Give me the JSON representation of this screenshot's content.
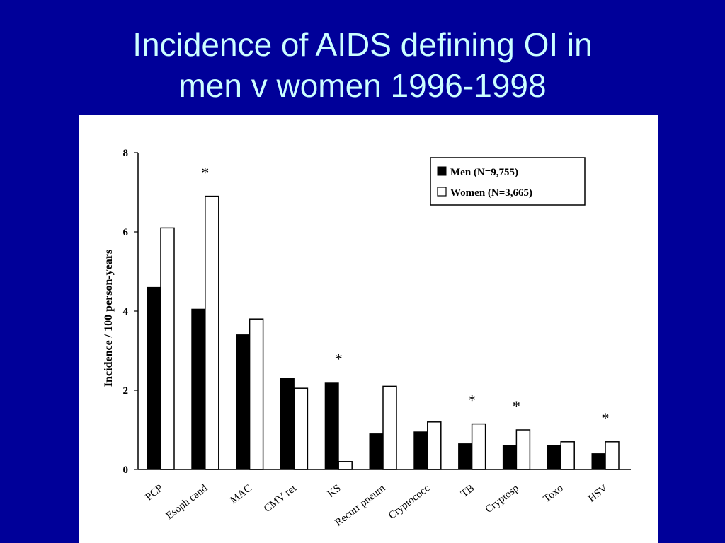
{
  "slide": {
    "title_line1": "Incidence of AIDS defining OI in",
    "title_line2": "men v women 1996-1998"
  },
  "colors": {
    "background": "#000099",
    "title": "#ccffff",
    "men": "#000000",
    "women": "#ffffff"
  },
  "chart_data": {
    "type": "bar",
    "title": "",
    "xlabel": "",
    "ylabel": "Incidence / 100 person-years",
    "ylim": [
      0,
      8
    ],
    "yticks": [
      "0",
      "2",
      "4",
      "6",
      "8"
    ],
    "categories": [
      "PCP",
      "Esoph cand",
      "MAC",
      "CMV ret",
      "KS",
      "Recurr pneum",
      "Cryptococc",
      "TB",
      "Cryptosp",
      "Toxo",
      "HSV"
    ],
    "series": [
      {
        "name": "Men (N=9,755)",
        "values": [
          4.6,
          4.05,
          3.4,
          2.3,
          2.2,
          0.9,
          0.95,
          0.65,
          0.6,
          0.6,
          0.4
        ]
      },
      {
        "name": "Women (N=3,665)",
        "values": [
          6.1,
          6.9,
          3.8,
          2.05,
          0.2,
          2.1,
          1.2,
          1.15,
          1.0,
          0.7,
          0.7
        ]
      }
    ],
    "significance_marker": "*",
    "significant_categories": [
      "Esoph cand",
      "KS",
      "TB",
      "Cryptosp",
      "HSV"
    ],
    "legend_position": "top-right",
    "grid": false
  }
}
